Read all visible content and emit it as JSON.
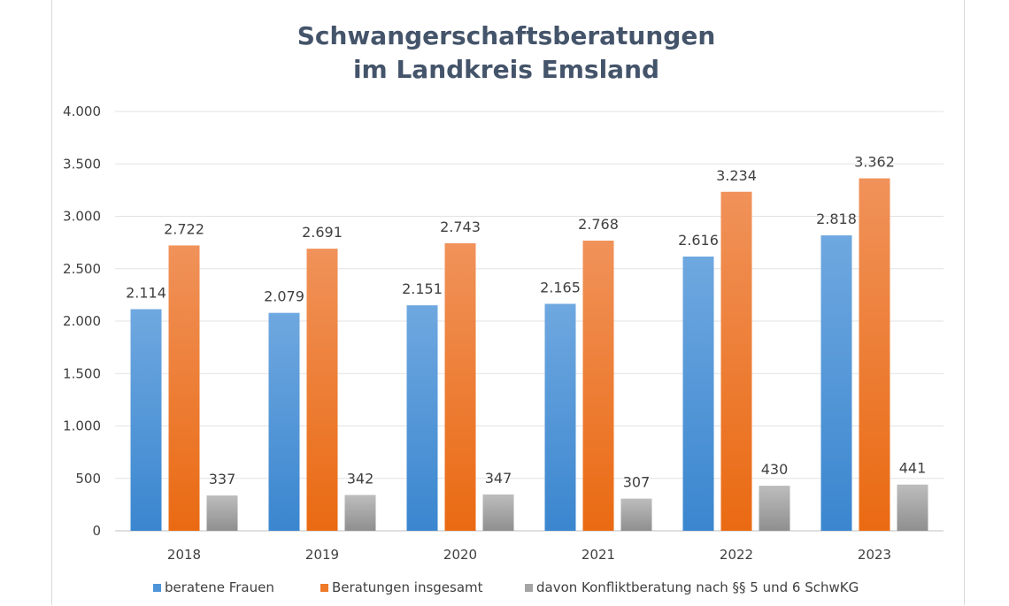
{
  "chart_data": {
    "type": "bar",
    "title": "Schwangerschaftsberatungen",
    "subtitle": "im Landkreis Emsland",
    "categories": [
      "2018",
      "2019",
      "2020",
      "2021",
      "2022",
      "2023"
    ],
    "series": [
      {
        "name": "beratene Frauen",
        "values": [
          2114,
          2079,
          2151,
          2165,
          2616,
          2818
        ],
        "labels": [
          "2.114",
          "2.079",
          "2.151",
          "2.165",
          "2.616",
          "2.818"
        ]
      },
      {
        "name": "Beratungen insgesamt",
        "values": [
          2722,
          2691,
          2743,
          2768,
          3234,
          3362
        ],
        "labels": [
          "2.722",
          "2.691",
          "2.743",
          "2.768",
          "3.234",
          "3.362"
        ]
      },
      {
        "name": "davon Konfliktberatung nach §§ 5 und 6 SchwKG",
        "values": [
          337,
          342,
          347,
          307,
          430,
          441
        ],
        "labels": [
          "337",
          "342",
          "347",
          "307",
          "430",
          "441"
        ]
      }
    ],
    "y_ticks": [
      0,
      500,
      1000,
      1500,
      2000,
      2500,
      3000,
      3500,
      4000
    ],
    "y_tick_labels": [
      "0",
      "500",
      "1.000",
      "1.500",
      "2.000",
      "2.500",
      "3.000",
      "3.500",
      "4.000"
    ],
    "ylim": [
      0,
      4000
    ],
    "grid": true,
    "legend_position": "bottom",
    "colors": [
      "#4e95d9",
      "#ee7a2a",
      "#a5a5a5"
    ]
  }
}
